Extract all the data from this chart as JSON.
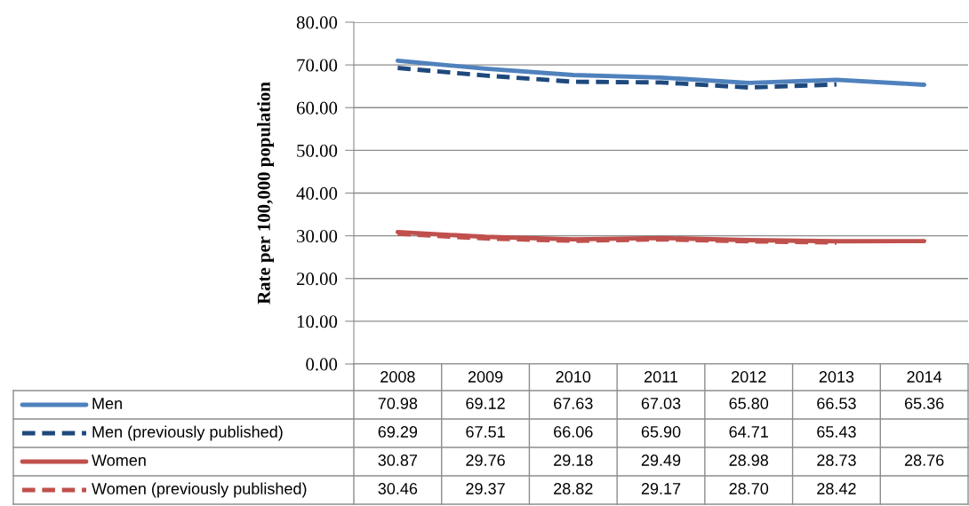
{
  "chart_data": {
    "type": "line",
    "ylabel": "Rate per 100,000 population",
    "categories": [
      "2008",
      "2009",
      "2010",
      "2011",
      "2012",
      "2013",
      "2014"
    ],
    "series": [
      {
        "name": "Men",
        "color": "#4f81bd",
        "line_style": "solid",
        "values": [
          70.98,
          69.12,
          67.63,
          67.03,
          65.8,
          66.53,
          65.36
        ],
        "value_labels": [
          "70.98",
          "69.12",
          "67.63",
          "67.03",
          "65.80",
          "66.53",
          "65.36"
        ]
      },
      {
        "name": "Men (previously published)",
        "color": "#1f497d",
        "line_style": "dashed",
        "values": [
          69.29,
          67.51,
          66.06,
          65.9,
          64.71,
          65.43,
          null
        ],
        "value_labels": [
          "69.29",
          "67.51",
          "66.06",
          "65.90",
          "64.71",
          "65.43",
          null
        ]
      },
      {
        "name": "Women",
        "color": "#c0504d",
        "line_style": "solid",
        "values": [
          30.87,
          29.76,
          29.18,
          29.49,
          28.98,
          28.73,
          28.76
        ],
        "value_labels": [
          "30.87",
          "29.76",
          "29.18",
          "29.49",
          "28.98",
          "28.73",
          "28.76"
        ]
      },
      {
        "name": "Women (previously published)",
        "color": "#c0504d",
        "line_style": "dashed",
        "values": [
          30.46,
          29.37,
          28.82,
          29.17,
          28.7,
          28.42,
          null
        ],
        "value_labels": [
          "30.46",
          "29.37",
          "28.82",
          "29.17",
          "28.70",
          "28.42",
          null
        ]
      }
    ],
    "ylim": [
      0,
      80
    ],
    "yticks": [
      {
        "value": 0,
        "label": "0.00"
      },
      {
        "value": 10,
        "label": "10.00"
      },
      {
        "value": 20,
        "label": "20.00"
      },
      {
        "value": 30,
        "label": "30.00"
      },
      {
        "value": 40,
        "label": "40.00"
      },
      {
        "value": 50,
        "label": "50.00"
      },
      {
        "value": 60,
        "label": "60.00"
      },
      {
        "value": 70,
        "label": "70.00"
      },
      {
        "value": 80,
        "label": "80.00"
      }
    ],
    "grid": "y",
    "legend": "bottom",
    "marker": "none"
  }
}
